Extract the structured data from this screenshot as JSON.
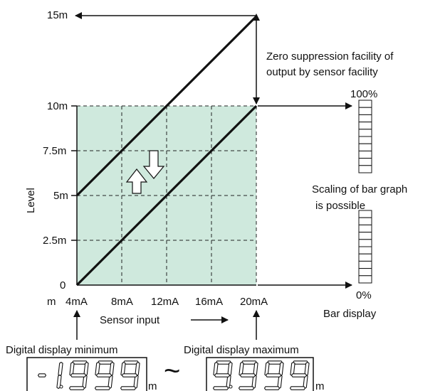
{
  "y_axis": {
    "title": "Level",
    "ticks": [
      "0",
      "2.5m",
      "5m",
      "7.5m",
      "10m"
    ],
    "unit": "m",
    "top_label": "15m"
  },
  "x_axis": {
    "title": "Sensor input",
    "ticks": [
      "4mA",
      "8mA",
      "12mA",
      "16mA",
      "20mA"
    ]
  },
  "annotations": {
    "zero_suppression_line1": "Zero suppression facility of",
    "zero_suppression_line2": "output by sensor facility",
    "scaling_line1": "Scaling of bar graph",
    "scaling_line2": "is possible",
    "bar_display": "Bar display",
    "bar_top": "100%",
    "bar_bottom": "0%",
    "display_min": "Digital display minimum",
    "display_max": "Digital display maximum",
    "tilde": "~"
  },
  "displays": {
    "min_value": "-1999",
    "max_value": "9999",
    "unit": "m"
  },
  "colors": {
    "plot_fill": "#cfe9dd",
    "line": "#111111"
  }
}
